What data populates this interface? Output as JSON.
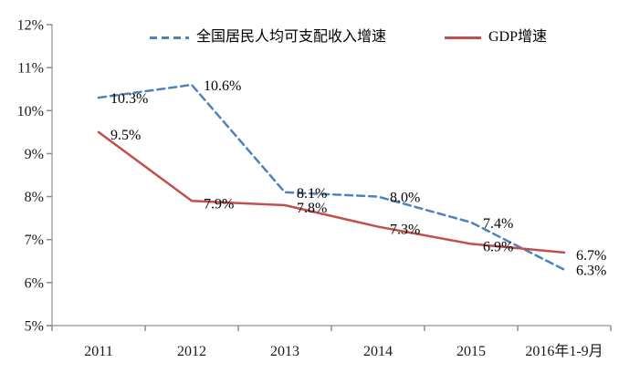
{
  "chart_data": {
    "type": "line",
    "title": "",
    "xlabel": "",
    "ylabel": "",
    "categories": [
      "2011",
      "2012",
      "2013",
      "2014",
      "2015",
      "2016年1-9月"
    ],
    "series": [
      {
        "name": "全国居民人均可支配收入增速",
        "color": "#4F81BD",
        "line_style": "dashed",
        "values": [
          10.3,
          10.6,
          8.1,
          8.0,
          7.4,
          6.3
        ],
        "point_labels": [
          "10.3%",
          "10.6%",
          "8.1%",
          "8.0%",
          "7.4%",
          "6.3%"
        ]
      },
      {
        "name": "GDP增速",
        "color": "#C0504D",
        "line_style": "solid",
        "values": [
          9.5,
          7.9,
          7.8,
          7.3,
          6.9,
          6.7
        ],
        "point_labels": [
          "9.5%",
          "7.9%",
          "7.8%",
          "7.3%",
          "6.9%",
          "6.7%"
        ]
      }
    ],
    "ylim": [
      5,
      12
    ],
    "y_ticks": [
      "5%",
      "6%",
      "7%",
      "8%",
      "9%",
      "10%",
      "11%",
      "12%"
    ],
    "legend_position": "top",
    "grid": false,
    "colors": {
      "axis": "#a6a6a6",
      "tick": "#8c8c8c",
      "axis_text": "#1a1a1a",
      "data_label_text": "#000000",
      "background": "#ffffff"
    }
  }
}
